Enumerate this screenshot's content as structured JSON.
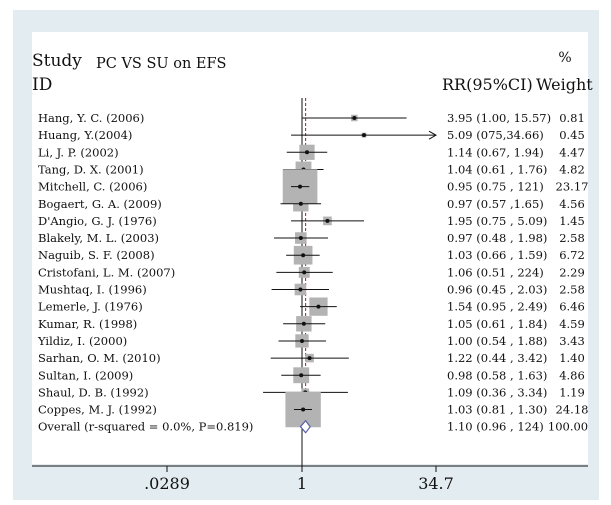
{
  "chart_data": {
    "type": "forest",
    "title": "PC VS SU on EFS",
    "header_left_1": "Study",
    "header_left_2": "ID",
    "header_rr": "RR(95%CI)",
    "header_weight_1": "%",
    "header_weight_2": "Weight",
    "x_scale": "log",
    "xlim": [
      0.0289,
      34.7
    ],
    "x_ticks": [
      {
        "value": 0.0289,
        "label": ".0289"
      },
      {
        "value": 1,
        "label": "1"
      },
      {
        "value": 34.7,
        "label": "34.7"
      }
    ],
    "reference_line": 1,
    "pooled_line": 1.1,
    "studies": [
      {
        "id": "Hang, Y. C. (2006)",
        "rr": 3.95,
        "lo": 1.0,
        "hi": 15.57,
        "ci_text": "3.95 (1.00, 15.57)",
        "weight": 0.81,
        "weight_text": "0.81"
      },
      {
        "id": "Huang, Y.(2004)",
        "rr": 5.09,
        "lo": 0.75,
        "hi": 34.66,
        "ci_text": "5.09 (075,34.66)",
        "weight": 0.45,
        "weight_text": "0.45",
        "arrow": true
      },
      {
        "id": "Li, J. P. (2002)",
        "rr": 1.14,
        "lo": 0.67,
        "hi": 1.94,
        "ci_text": "1.14 (0.67, 1.94)",
        "weight": 4.47,
        "weight_text": "4.47"
      },
      {
        "id": "Tang, D. X. (2001)",
        "rr": 1.04,
        "lo": 0.61,
        "hi": 1.76,
        "ci_text": "1.04 (0.61 , 1.76)",
        "weight": 4.82,
        "weight_text": "4.82"
      },
      {
        "id": "Mitchell, C. (2006)",
        "rr": 0.95,
        "lo": 0.75,
        "hi": 1.21,
        "ci_text": "0.95 (0.75 , 121)",
        "weight": 23.17,
        "weight_text": "23.17"
      },
      {
        "id": "Bogaert, G. A. (2009)",
        "rr": 0.97,
        "lo": 0.57,
        "hi": 1.65,
        "ci_text": "0.97 (0.57 ,1.65)",
        "weight": 4.56,
        "weight_text": "4.56"
      },
      {
        "id": "D'Angio, G. J. (1976)",
        "rr": 1.95,
        "lo": 0.75,
        "hi": 5.09,
        "ci_text": "1.95 (0.75 , 5.09)",
        "weight": 1.45,
        "weight_text": "1.45"
      },
      {
        "id": "Blakely, M. L. (2003)",
        "rr": 0.97,
        "lo": 0.48,
        "hi": 1.98,
        "ci_text": "0.97 (0.48 , 1.98)",
        "weight": 2.58,
        "weight_text": "2.58"
      },
      {
        "id": "Naguib, S. F. (2008)",
        "rr": 1.03,
        "lo": 0.66,
        "hi": 1.59,
        "ci_text": "1.03 (0.66 , 1.59)",
        "weight": 6.72,
        "weight_text": "6.72"
      },
      {
        "id": "Cristofani, L. M. (2007)",
        "rr": 1.06,
        "lo": 0.51,
        "hi": 2.24,
        "ci_text": "1.06 (0.51 , 224)",
        "weight": 2.29,
        "weight_text": "2.29"
      },
      {
        "id": "Mushtaq, I. (1996)",
        "rr": 0.96,
        "lo": 0.45,
        "hi": 2.03,
        "ci_text": "0.96 (0.45 , 2.03)",
        "weight": 2.58,
        "weight_text": "2.58"
      },
      {
        "id": "Lemerle, J. (1976)",
        "rr": 1.54,
        "lo": 0.95,
        "hi": 2.49,
        "ci_text": "1.54 (0.95 , 2.49)",
        "weight": 6.46,
        "weight_text": "6.46"
      },
      {
        "id": "Kumar, R. (1998)",
        "rr": 1.05,
        "lo": 0.61,
        "hi": 1.84,
        "ci_text": "1.05 (0.61 , 1.84)",
        "weight": 4.59,
        "weight_text": "4.59"
      },
      {
        "id": "Yildiz, I. (2000)",
        "rr": 1.0,
        "lo": 0.54,
        "hi": 1.88,
        "ci_text": "1.00 (0.54 , 1.88)",
        "weight": 3.43,
        "weight_text": "3.43"
      },
      {
        "id": "Sarhan, O. M. (2010)",
        "rr": 1.22,
        "lo": 0.44,
        "hi": 3.42,
        "ci_text": "1.22 (0.44 , 3.42)",
        "weight": 1.4,
        "weight_text": "1.40"
      },
      {
        "id": "Sultan, I. (2009)",
        "rr": 0.98,
        "lo": 0.58,
        "hi": 1.63,
        "ci_text": "0.98 (0.58 , 1.63)",
        "weight": 4.86,
        "weight_text": "4.86"
      },
      {
        "id": "Shaul, D. B. (1992)",
        "rr": 1.09,
        "lo": 0.36,
        "hi": 3.34,
        "ci_text": "1.09 (0.36 , 3.34)",
        "weight": 1.19,
        "weight_text": "1.19"
      },
      {
        "id": "Coppes, M. J. (1992)",
        "rr": 1.03,
        "lo": 0.81,
        "hi": 1.3,
        "ci_text": "1.03 (0.81 , 1.30)",
        "weight": 24.18,
        "weight_text": "24.18"
      }
    ],
    "overall": {
      "id": "Overall (r-squared = 0.0%, P=0.819)",
      "rr": 1.1,
      "lo": 0.96,
      "hi": 1.24,
      "ci_text": "1.10 (0.96 , 124)",
      "weight_text": "100.00"
    },
    "colors": {
      "box": "#b3b3b3",
      "line": "#111111",
      "pooled_line": "#b0132a",
      "diamond": "#5a5fa8",
      "frame": "#e3ecf1"
    }
  }
}
